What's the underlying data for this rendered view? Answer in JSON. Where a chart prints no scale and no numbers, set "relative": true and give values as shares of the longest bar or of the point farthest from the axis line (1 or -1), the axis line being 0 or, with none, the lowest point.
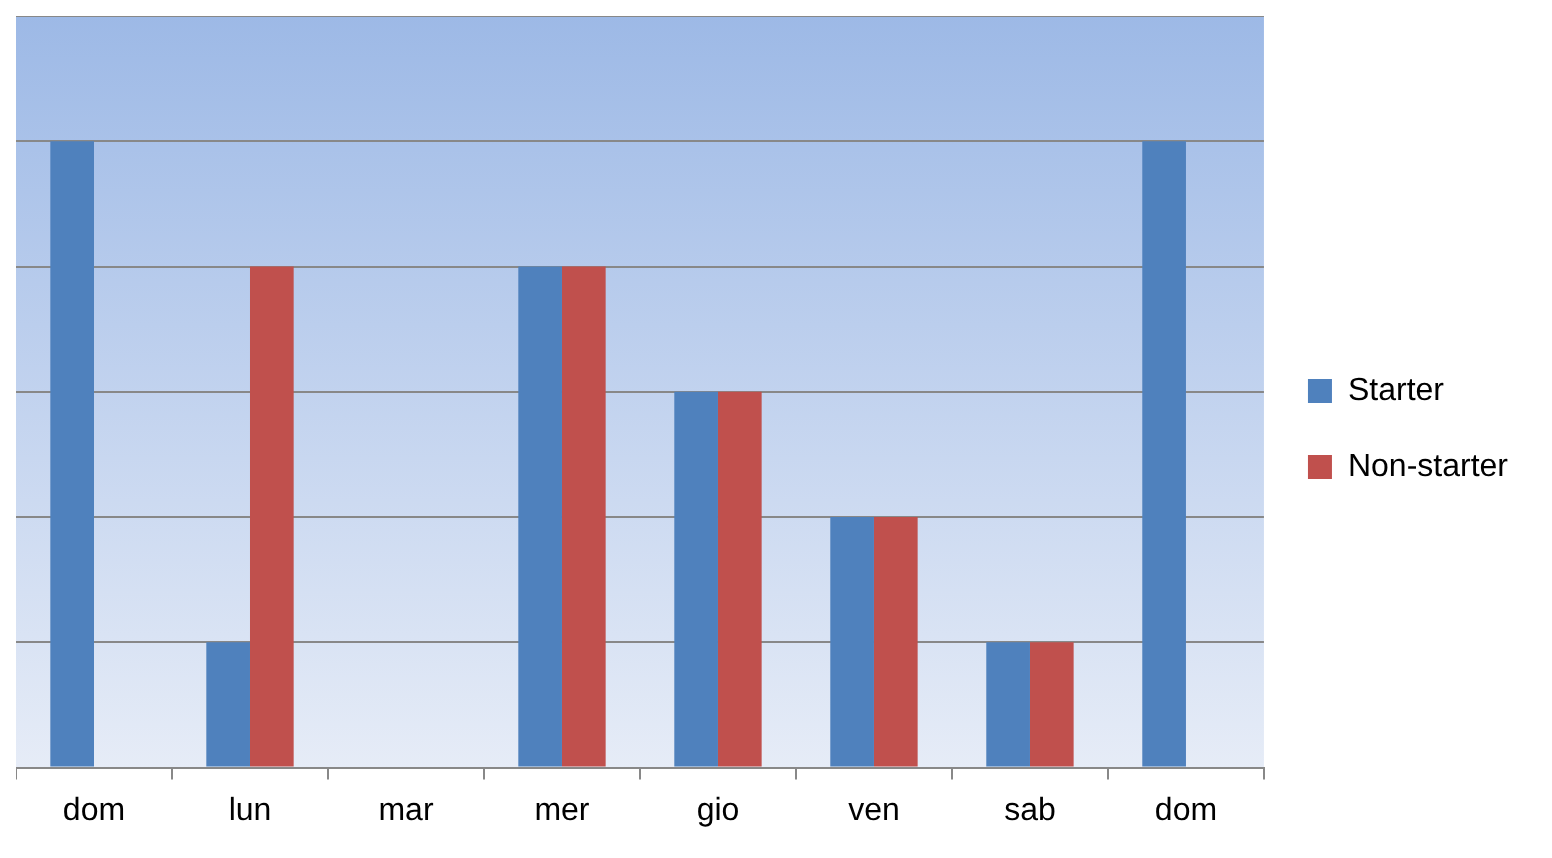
{
  "chart_data": {
    "type": "bar",
    "relative": true,
    "categories": [
      "dom",
      "lun",
      "mar",
      "mer",
      "gio",
      "ven",
      "sab",
      "dom"
    ],
    "series": [
      {
        "name": "Starter",
        "color": "#4f81bd",
        "values": [
          1,
          0.2,
          0,
          0.8,
          0.6,
          0.4,
          0.2,
          1
        ]
      },
      {
        "name": "Non-starter",
        "color": "#c0504d",
        "values": [
          0,
          0.8,
          0,
          0.8,
          0.6,
          0.4,
          0.2,
          0
        ]
      }
    ],
    "grid": "y",
    "legend": "right"
  }
}
